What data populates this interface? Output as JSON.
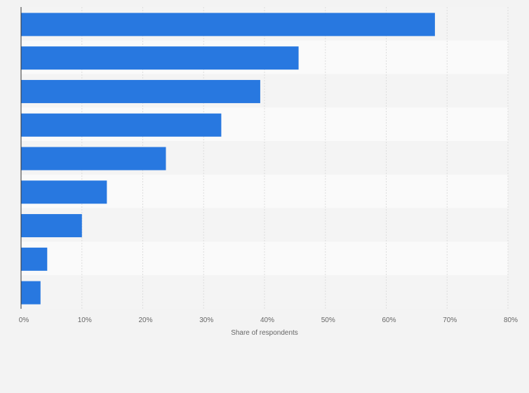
{
  "chart_data": {
    "type": "bar",
    "orientation": "horizontal",
    "categories": [
      "",
      "",
      "",
      "",
      "",
      "",
      "",
      "",
      ""
    ],
    "values": [
      68,
      45.6,
      39.3,
      32.9,
      23.8,
      14.1,
      10.0,
      4.3,
      3.2
    ],
    "title": "",
    "xlabel": "Share of respondents",
    "ylabel": "",
    "xlim": [
      0,
      80
    ],
    "xticks": [
      {
        "value": 0,
        "label": "0%"
      },
      {
        "value": 10,
        "label": "10%"
      },
      {
        "value": 20,
        "label": "20%"
      },
      {
        "value": 30,
        "label": "30%"
      },
      {
        "value": 40,
        "label": "40%"
      },
      {
        "value": 50,
        "label": "50%"
      },
      {
        "value": 60,
        "label": "60%"
      },
      {
        "value": 70,
        "label": "70%"
      },
      {
        "value": 80,
        "label": "80%"
      }
    ],
    "grid": true,
    "colors": {
      "bar": "#2878e0",
      "band_odd": "#f4f4f4",
      "band_even": "#fafafa",
      "grid": "#dddddd",
      "axis": "#333333",
      "page": "#f3f3f3"
    }
  }
}
